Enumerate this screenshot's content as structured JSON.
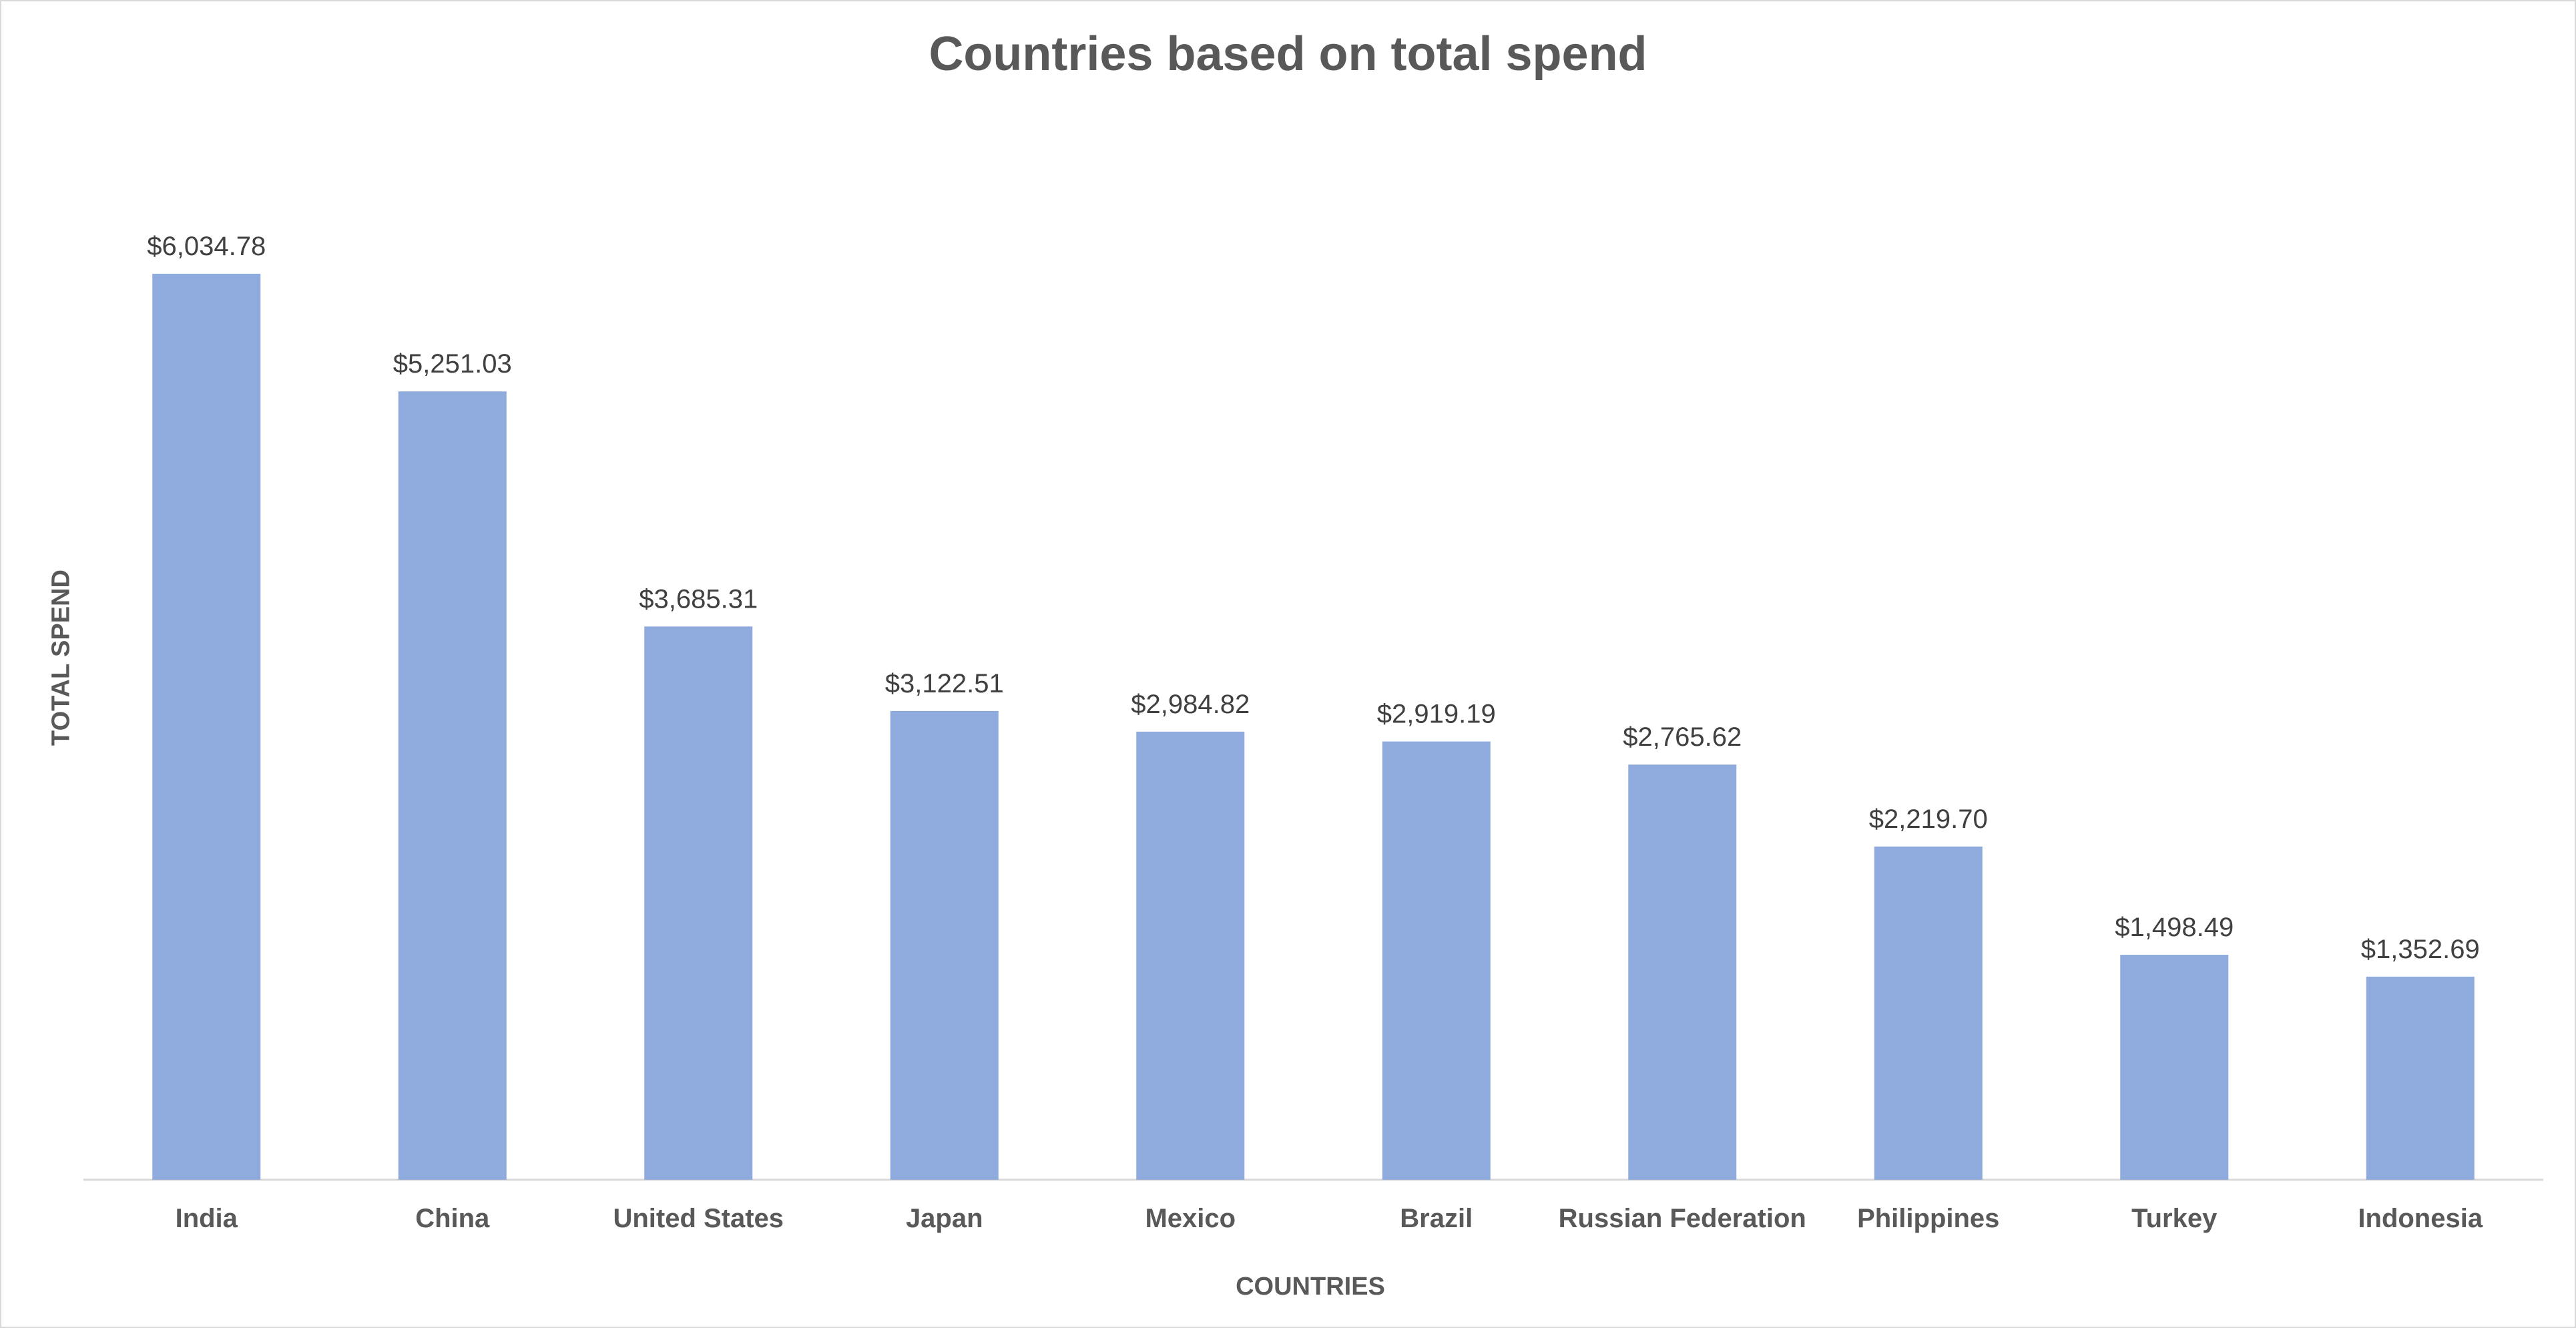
{
  "chart_data": {
    "type": "bar",
    "title": "Countries based on total spend",
    "xlabel": "COUNTRIES",
    "ylabel": "TOTAL SPEND",
    "categories": [
      "India",
      "China",
      "United States",
      "Japan",
      "Mexico",
      "Brazil",
      "Russian Federation",
      "Philippines",
      "Turkey",
      "Indonesia"
    ],
    "values": [
      6034.78,
      5251.03,
      3685.31,
      3122.51,
      2984.82,
      2919.19,
      2765.62,
      2219.7,
      1498.49,
      1352.69
    ],
    "data_labels": [
      "$6,034.78",
      "$5,251.03",
      "$3,685.31",
      "$3,122.51",
      "$2,984.82",
      "$2,919.19",
      "$2,765.62",
      "$2,219.70",
      "$1,498.49",
      "$1,352.69"
    ],
    "ylim": [
      0,
      6034.78
    ],
    "grid": false,
    "legend": "none",
    "colors": {
      "bar": "#8faadc",
      "axis_line": "#d9d9d9",
      "title_text": "#595959",
      "label_text": "#404040"
    }
  }
}
